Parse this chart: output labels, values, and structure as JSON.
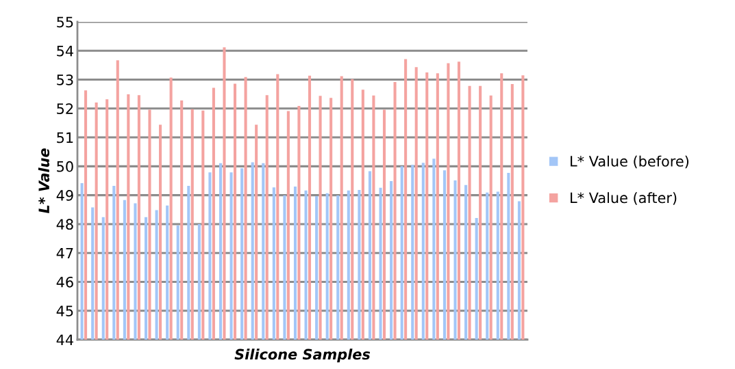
{
  "chart_data": {
    "type": "bar",
    "xlabel": "Silicone Samples",
    "ylabel": "L* Value",
    "categories": [
      null,
      null,
      null,
      null,
      null,
      null,
      null,
      null,
      null,
      null,
      null,
      null,
      null,
      null,
      null,
      null,
      null,
      null,
      null,
      null,
      null,
      null,
      null,
      null,
      null,
      null,
      null,
      null,
      null,
      null,
      null,
      null,
      null,
      null,
      null,
      null,
      null,
      null,
      null,
      null,
      null,
      null
    ],
    "series": [
      {
        "name": "L* Value (before)",
        "color": "#a3c6f7",
        "values": [
          49.42,
          48.58,
          48.24,
          49.32,
          48.83,
          48.72,
          48.24,
          48.48,
          48.64,
          47.95,
          49.32,
          48.0,
          49.79,
          50.11,
          49.79,
          49.93,
          50.14,
          50.11,
          49.27,
          48.99,
          49.3,
          49.16,
          48.97,
          49.07,
          48.99,
          49.16,
          49.18,
          49.83,
          49.26,
          49.49,
          50.0,
          50.05,
          50.12,
          50.26,
          49.86,
          49.51,
          49.35,
          48.21,
          49.09,
          49.12,
          49.77,
          48.79
        ]
      },
      {
        "name": "L* Value (after)",
        "color": "#f4a3a0",
        "values": [
          52.63,
          52.21,
          52.32,
          53.67,
          52.49,
          52.46,
          51.96,
          51.44,
          53.07,
          52.28,
          51.98,
          51.93,
          52.72,
          54.12,
          52.86,
          53.09,
          51.44,
          52.46,
          53.19,
          51.91,
          52.09,
          53.14,
          52.44,
          52.37,
          53.12,
          53.02,
          52.65,
          52.45,
          51.96,
          52.92,
          53.71,
          53.43,
          53.25,
          53.22,
          53.57,
          53.62,
          52.78,
          52.78,
          52.45,
          53.22,
          52.85,
          53.15
        ]
      }
    ],
    "ylim": [
      44,
      55
    ],
    "yticks": [
      44,
      45,
      46,
      47,
      48,
      49,
      50,
      51,
      52,
      53,
      54,
      55
    ],
    "grid": "y",
    "legend": "right"
  }
}
